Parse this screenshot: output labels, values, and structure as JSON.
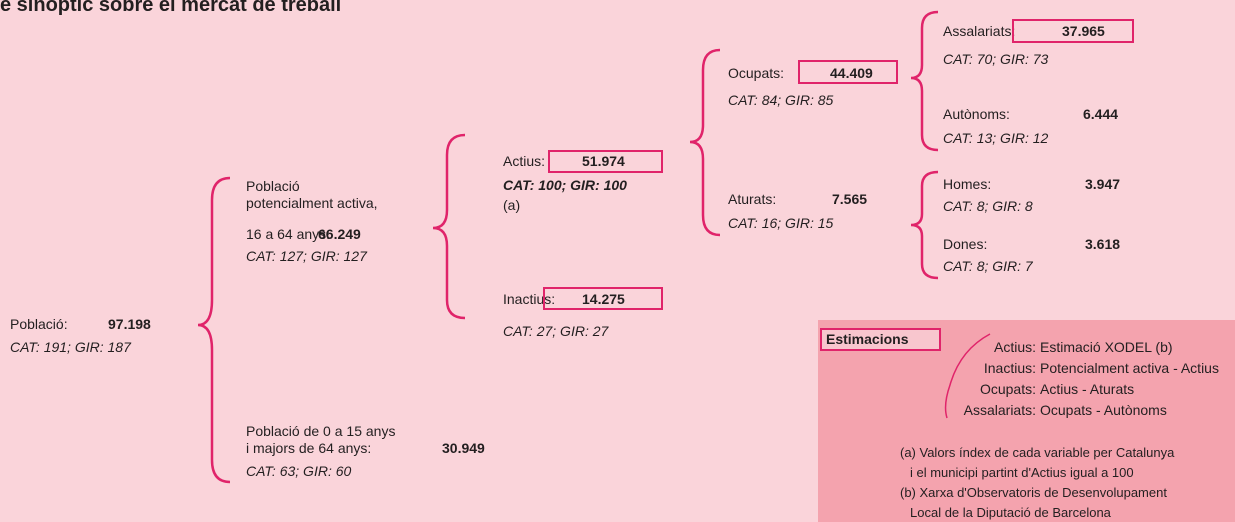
{
  "header": {
    "title": "e sinoptic sobre el mercat de treball"
  },
  "nodes": [
    {
      "label": "Població:",
      "value": "97.198",
      "index": "CAT: 191; GIR: 187"
    },
    {
      "label": [
        "Població",
        "potencialment activa,",
        "16 a 64 anys:"
      ],
      "value": "66.249",
      "index": "CAT: 127; GIR: 127"
    },
    {
      "label": [
        "Població de 0 a 15 anys",
        "i majors de 64 anys:"
      ],
      "value": "30.949",
      "index": "CAT: 63; GIR: 60"
    },
    {
      "label": "Actius:",
      "value": "51.974",
      "index": "CAT: 100; GIR: 100",
      "note": "(a)"
    },
    {
      "label": "Inactius:",
      "value": "14.275",
      "index": "CAT: 27; GIR: 27"
    },
    {
      "label": "Ocupats:",
      "value": "44.409",
      "index": "CAT: 84; GIR: 85"
    },
    {
      "label": "Aturats:",
      "value": "7.565",
      "index": "CAT: 16; GIR: 15"
    },
    {
      "label": "Assalariats:",
      "value": "37.965",
      "index": "CAT: 70; GIR: 73"
    },
    {
      "label": "Autònoms:",
      "value": "6.444",
      "index": "CAT: 13; GIR: 12"
    },
    {
      "label": "Homes:",
      "value": "3.947",
      "index": "CAT: 8; GIR: 8"
    },
    {
      "label": "Dones:",
      "value": "3.618",
      "index": "CAT: 8; GIR: 7"
    }
  ],
  "estimacions": {
    "title": "Estimacions",
    "formulas": [
      [
        "Actius:",
        "Estimació XODEL (b)"
      ],
      [
        "Inactius:",
        "Potencialment activa - Actius"
      ],
      [
        "Ocupats:",
        "Actius - Aturats"
      ],
      [
        "Assalariats:",
        "Ocupats - Autònoms"
      ]
    ],
    "notes": [
      "(a) Valors índex de cada variable per Catalunya",
      "i el municipi partint d'Actius igual a 100",
      "(b) Xarxa d'Observatoris de Desenvolupament",
      "Local de la Diputació de Barcelona"
    ]
  }
}
